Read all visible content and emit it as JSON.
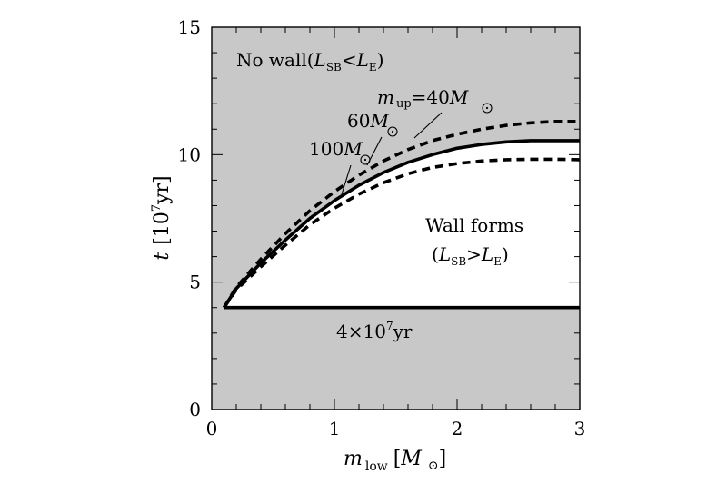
{
  "chart_data": {
    "type": "line",
    "title": "",
    "xlabel": {
      "var": "m",
      "sub": "low",
      "unit": "[M",
      "unit_close": "]"
    },
    "ylabel": {
      "var": "t",
      "unit": "[10",
      "exp": "7",
      "unit_tail": "yr]"
    },
    "xlim": [
      0,
      3
    ],
    "ylim": [
      0,
      15
    ],
    "xticks": [
      "0",
      "1",
      "2",
      "3"
    ],
    "yticks": [
      "0",
      "5",
      "10",
      "15"
    ],
    "grid": false,
    "series": [
      {
        "name": "m_up=40M_sun",
        "style": "dashed",
        "x": [
          0.1,
          0.2,
          0.4,
          0.6,
          0.8,
          1.0,
          1.2,
          1.4,
          1.6,
          1.8,
          2.0,
          2.2,
          2.4,
          2.6,
          2.8,
          3.0
        ],
        "y": [
          4.0,
          4.8,
          5.9,
          6.9,
          7.8,
          8.55,
          9.2,
          9.75,
          10.2,
          10.55,
          10.8,
          11.0,
          11.15,
          11.25,
          11.3,
          11.3
        ]
      },
      {
        "name": "60M_sun",
        "style": "solid",
        "x": [
          0.1,
          0.2,
          0.4,
          0.6,
          0.8,
          1.0,
          1.2,
          1.4,
          1.6,
          1.8,
          2.0,
          2.2,
          2.4,
          2.6,
          2.8,
          3.0
        ],
        "y": [
          4.0,
          4.75,
          5.75,
          6.65,
          7.5,
          8.2,
          8.8,
          9.3,
          9.7,
          10.0,
          10.25,
          10.4,
          10.5,
          10.55,
          10.55,
          10.55
        ]
      },
      {
        "name": "100M_sun",
        "style": "dashed",
        "x": [
          0.1,
          0.2,
          0.4,
          0.6,
          0.8,
          1.0,
          1.2,
          1.4,
          1.6,
          1.8,
          2.0,
          2.2,
          2.4,
          2.6,
          2.8,
          3.0
        ],
        "y": [
          4.0,
          4.7,
          5.6,
          6.45,
          7.25,
          7.9,
          8.45,
          8.9,
          9.25,
          9.5,
          9.65,
          9.75,
          9.8,
          9.82,
          9.82,
          9.8
        ]
      },
      {
        "name": "4x10^7yr",
        "style": "solid",
        "x": [
          0.1,
          3.0
        ],
        "y": [
          4.0,
          4.0
        ]
      }
    ],
    "annotations": {
      "no_wall": {
        "text": "No wall(",
        "L": "L",
        "sb": "SB",
        "lt": "<",
        "LE": "L",
        "E": "E",
        "close": ")"
      },
      "mup40": {
        "m": "m",
        "sub": "up",
        "eq": "=40",
        "M": "M"
      },
      "m60": {
        "num": "60",
        "M": "M"
      },
      "m100": {
        "num": "100",
        "M": "M"
      },
      "wall_forms": {
        "line1": "Wall forms",
        "open": "(",
        "L": "L",
        "sb": "SB",
        "gt": ">",
        "LE": "L",
        "E": "E",
        "close": ")"
      },
      "floor": {
        "text": "4×10",
        "exp": "7",
        "tail": "yr"
      }
    },
    "colors": {
      "forbidden_region": "#c8c8c8",
      "allowed_region": "#ffffff",
      "lines": "#000000"
    }
  }
}
